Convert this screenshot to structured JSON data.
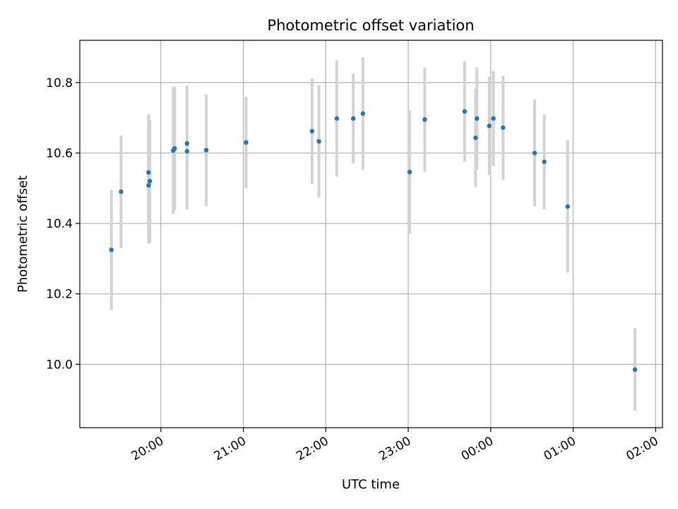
{
  "chart_data": {
    "type": "scatter",
    "title": "Photometric offset variation",
    "xlabel": "UTC time",
    "ylabel": "Photometric offset",
    "x_is_time": true,
    "x_tick_labels": [
      "20:00",
      "21:00",
      "22:00",
      "23:00",
      "00:00",
      "01:00",
      "02:00"
    ],
    "x_tick_values": [
      "20:00",
      "21:00",
      "22:00",
      "23:00",
      "00:00",
      "01:00",
      "02:00"
    ],
    "xlim": [
      "19:01",
      "02:05"
    ],
    "y_tick_labels": [
      "10.0",
      "10.2",
      "10.4",
      "10.6",
      "10.8"
    ],
    "y_tick_values": [
      10.0,
      10.2,
      10.4,
      10.6,
      10.8
    ],
    "ylim": [
      9.82,
      10.92
    ],
    "grid": true,
    "colors": {
      "point": "#1f77b4",
      "errorbar": "#d3d3d3",
      "grid": "#b0b0b0"
    },
    "points": [
      {
        "time": "19:24",
        "y": 10.325,
        "err": 0.17
      },
      {
        "time": "19:31",
        "y": 10.49,
        "err": 0.16
      },
      {
        "time": "19:51",
        "y": 10.545,
        "err": 0.165
      },
      {
        "time": "19:51",
        "y": 10.508,
        "err": 0.165
      },
      {
        "time": "19:52",
        "y": 10.52,
        "err": 0.175
      },
      {
        "time": "20:09",
        "y": 10.607,
        "err": 0.18
      },
      {
        "time": "20:10",
        "y": 10.613,
        "err": 0.175
      },
      {
        "time": "20:19",
        "y": 10.605,
        "err": 0.165
      },
      {
        "time": "20:19",
        "y": 10.627,
        "err": 0.165
      },
      {
        "time": "20:33",
        "y": 10.608,
        "err": 0.158
      },
      {
        "time": "21:02",
        "y": 10.63,
        "err": 0.13
      },
      {
        "time": "21:50",
        "y": 10.662,
        "err": 0.15
      },
      {
        "time": "21:55",
        "y": 10.633,
        "err": 0.16
      },
      {
        "time": "22:08",
        "y": 10.698,
        "err": 0.165
      },
      {
        "time": "22:20",
        "y": 10.698,
        "err": 0.128
      },
      {
        "time": "22:27",
        "y": 10.712,
        "err": 0.16
      },
      {
        "time": "23:01",
        "y": 10.546,
        "err": 0.175
      },
      {
        "time": "23:12",
        "y": 10.695,
        "err": 0.148
      },
      {
        "time": "23:41",
        "y": 10.718,
        "err": 0.142
      },
      {
        "time": "23:49",
        "y": 10.643,
        "err": 0.14
      },
      {
        "time": "23:50",
        "y": 10.698,
        "err": 0.145
      },
      {
        "time": "23:59",
        "y": 10.677,
        "err": 0.14
      },
      {
        "time": "00:02",
        "y": 10.698,
        "err": 0.135
      },
      {
        "time": "00:09",
        "y": 10.672,
        "err": 0.148
      },
      {
        "time": "00:32",
        "y": 10.6,
        "err": 0.152
      },
      {
        "time": "00:39",
        "y": 10.575,
        "err": 0.135
      },
      {
        "time": "00:56",
        "y": 10.448,
        "err": 0.188
      },
      {
        "time": "01:45",
        "y": 9.985,
        "err": 0.117
      }
    ]
  }
}
